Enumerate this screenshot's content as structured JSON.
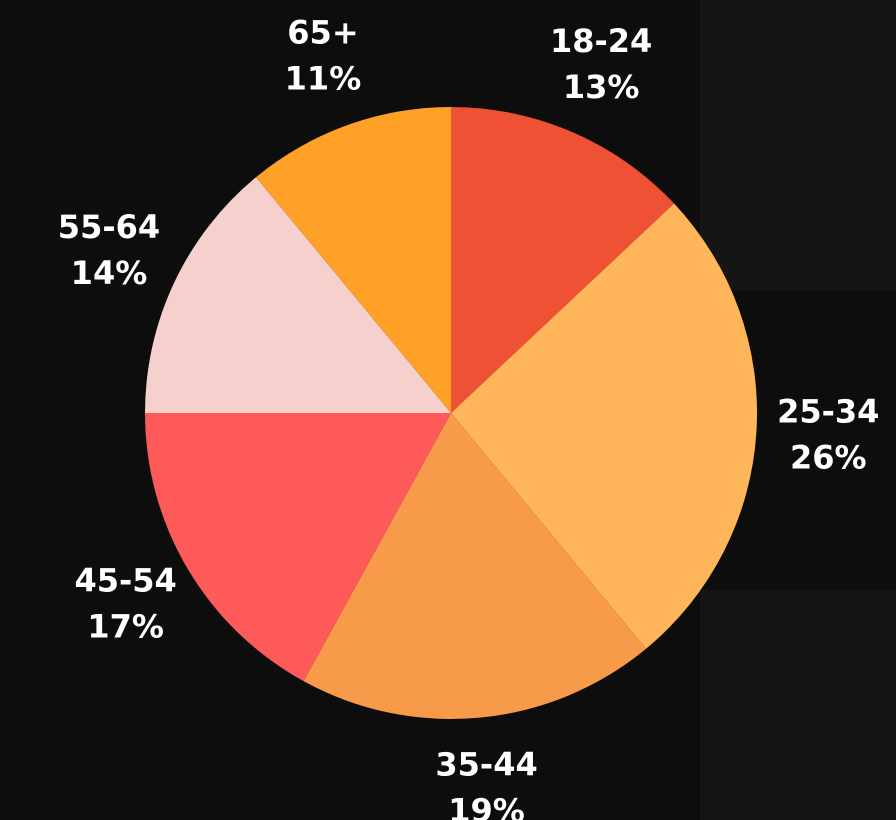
{
  "chart_data": {
    "type": "pie",
    "categories": [
      "18-24",
      "25-34",
      "35-44",
      "45-54",
      "55-64",
      "65+"
    ],
    "values": [
      13,
      26,
      19,
      17,
      14,
      11
    ],
    "value_labels": [
      "13%",
      "26%",
      "19%",
      "17%",
      "14%",
      "11%"
    ],
    "colors": [
      "#ee5133",
      "#ffb55a",
      "#f79a4a",
      "#ff5a5a",
      "#f5d0cc",
      "#ffa027"
    ]
  }
}
